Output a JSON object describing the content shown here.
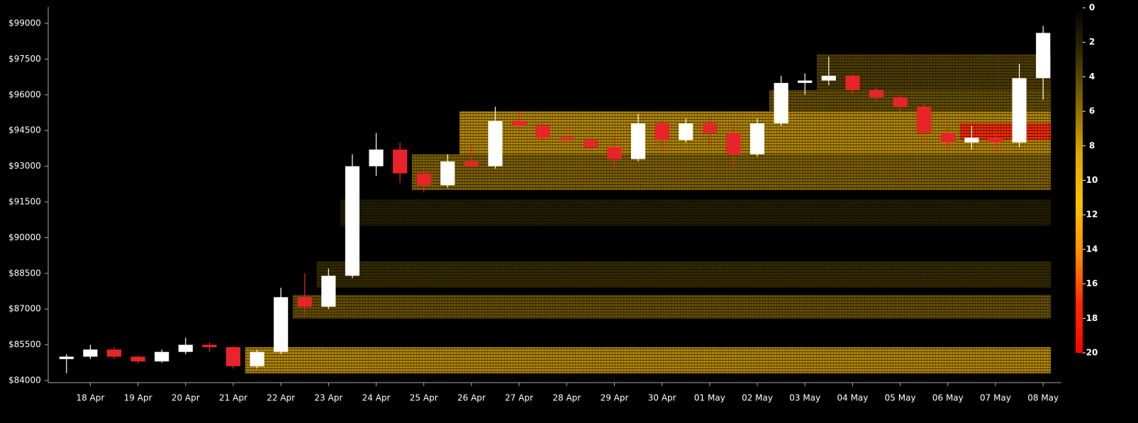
{
  "chart_data": {
    "type": "candlestick",
    "categories": [
      null,
      "18 Apr",
      null,
      "19 Apr",
      null,
      "20 Apr",
      null,
      "21 Apr",
      null,
      "22 Apr",
      null,
      "23 Apr",
      null,
      "24 Apr",
      null,
      "25 Apr",
      null,
      "26 Apr",
      null,
      "27 Apr",
      null,
      "28 Apr",
      null,
      "29 Apr",
      null,
      "30 Apr",
      null,
      "01 May",
      null,
      "02 May",
      null,
      "03 May",
      null,
      "04 May",
      null,
      "05 May",
      null,
      "06 May",
      null,
      "07 May",
      null,
      "08 May"
    ],
    "open": [
      84900,
      85000,
      85300,
      85000,
      84800,
      85200,
      85500,
      85400,
      84600,
      85200,
      87500,
      87100,
      88400,
      93000,
      93700,
      92700,
      92200,
      93200,
      93000,
      94900,
      94700,
      94200,
      94100,
      93800,
      93300,
      94800,
      94100,
      94800,
      94400,
      93500,
      94800,
      96500,
      96600,
      96800,
      96200,
      95900,
      95500,
      94400,
      94000,
      94200,
      94000,
      96700
    ],
    "high": [
      85100,
      85500,
      85400,
      85050,
      85300,
      85800,
      85600,
      85450,
      85300,
      87900,
      88500,
      88700,
      93500,
      94400,
      94000,
      92900,
      93500,
      93900,
      95500,
      95300,
      94900,
      94700,
      94300,
      94200,
      95200,
      95000,
      95000,
      95100,
      94700,
      95000,
      96800,
      96900,
      97600,
      96900,
      96300,
      96000,
      95600,
      94700,
      94700,
      94400,
      97300,
      98900
    ],
    "low": [
      84300,
      84900,
      84900,
      84700,
      84750,
      85100,
      85200,
      84500,
      84500,
      85100,
      86800,
      87000,
      88300,
      92600,
      92300,
      91900,
      92100,
      92900,
      92900,
      94400,
      94000,
      93900,
      93600,
      92900,
      93200,
      93600,
      94000,
      93900,
      92900,
      93400,
      94700,
      96000,
      96400,
      96000,
      95700,
      95300,
      93800,
      93700,
      93700,
      93500,
      93800,
      95800
    ],
    "close": [
      85000,
      85300,
      85000,
      84800,
      85200,
      85500,
      85400,
      84600,
      85200,
      87500,
      87100,
      88400,
      93000,
      93700,
      92700,
      92200,
      93200,
      93000,
      94900,
      94700,
      94200,
      94100,
      93800,
      93300,
      94800,
      94100,
      94800,
      94400,
      93500,
      94800,
      96500,
      96600,
      96800,
      96200,
      95900,
      95500,
      94400,
      94000,
      94200,
      94000,
      96700,
      98600
    ],
    "up_color": "#ffffff",
    "down_color": "#e8232a",
    "ylim": [
      84000,
      99000
    ],
    "yticks": [
      {
        "value": 84000,
        "label": "$84000"
      },
      {
        "value": 85500,
        "label": "$85500"
      },
      {
        "value": 87000,
        "label": "$87000"
      },
      {
        "value": 88500,
        "label": "$88500"
      },
      {
        "value": 90000,
        "label": "$90000"
      },
      {
        "value": 91500,
        "label": "$91500"
      },
      {
        "value": 93000,
        "label": "$93000"
      },
      {
        "value": 94500,
        "label": "$94500"
      },
      {
        "value": 96000,
        "label": "$96000"
      },
      {
        "value": 97500,
        "label": "$97500"
      },
      {
        "value": 99000,
        "label": "$99000"
      }
    ],
    "heatmap": [
      {
        "low": 84300,
        "high": 85400,
        "start": 8,
        "value": 8
      },
      {
        "low": 86600,
        "high": 87600,
        "start": 10,
        "value": 5
      },
      {
        "low": 87900,
        "high": 89000,
        "start": 11,
        "value": 3
      },
      {
        "low": 90500,
        "high": 91600,
        "start": 12,
        "value": 2
      },
      {
        "low": 92000,
        "high": 93500,
        "start": 15,
        "value": 6
      },
      {
        "low": 93500,
        "high": 95300,
        "start": 17,
        "value": 8
      },
      {
        "low": 95300,
        "high": 96200,
        "start": 30,
        "value": 5
      },
      {
        "low": 96200,
        "high": 97700,
        "start": 32,
        "value": 4
      },
      {
        "low": 94100,
        "high": 94800,
        "start": 38,
        "value": 18
      }
    ],
    "colorbar_lim": [
      0,
      20
    ],
    "colorbar_ticks": [
      0,
      2,
      4,
      6,
      8,
      10,
      12,
      14,
      16,
      18,
      20
    ],
    "colorbar_colors": [
      "#000000",
      "#3a3000",
      "#8a6a00",
      "#e0a800",
      "#ffc000",
      "#ff8c00",
      "#ff2a00",
      "#ff0000"
    ]
  }
}
